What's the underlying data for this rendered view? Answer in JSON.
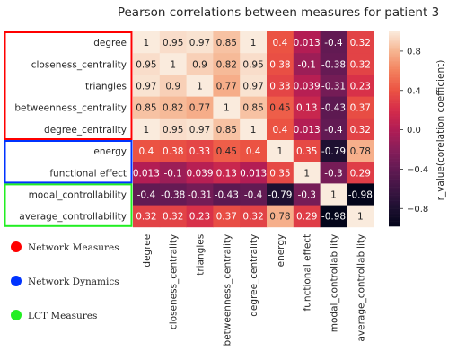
{
  "chart_data": {
    "type": "heatmap",
    "title": "Pearson correlations between measures for patient 3",
    "labels": [
      "degree",
      "closeness_centrality",
      "triangles",
      "betweenness_centrality",
      "degree_centrality",
      "energy",
      "functional effect",
      "modal_controllability",
      "average_controllability"
    ],
    "matrix": [
      [
        1,
        0.95,
        0.97,
        0.85,
        1,
        0.4,
        0.013,
        -0.4,
        0.32
      ],
      [
        0.95,
        1,
        0.9,
        0.82,
        0.95,
        0.38,
        -0.1,
        -0.38,
        0.32
      ],
      [
        0.97,
        0.9,
        1,
        0.77,
        0.97,
        0.33,
        0.039,
        -0.31,
        0.23
      ],
      [
        0.85,
        0.82,
        0.77,
        1,
        0.85,
        0.45,
        0.13,
        -0.43,
        0.37
      ],
      [
        1,
        0.95,
        0.97,
        0.85,
        1,
        0.4,
        0.013,
        -0.4,
        0.32
      ],
      [
        0.4,
        0.38,
        0.33,
        0.45,
        0.4,
        1,
        0.35,
        -0.79,
        0.78
      ],
      [
        0.013,
        -0.1,
        0.039,
        0.13,
        0.013,
        0.35,
        1,
        -0.3,
        0.29
      ],
      [
        -0.4,
        -0.38,
        -0.31,
        -0.43,
        -0.4,
        -0.79,
        -0.3,
        1,
        -0.98
      ],
      [
        0.32,
        0.32,
        0.23,
        0.37,
        0.32,
        0.78,
        0.29,
        -0.98,
        1
      ]
    ],
    "annotations": [
      [
        "1",
        "0.95",
        "0.97",
        "0.85",
        "1",
        "0.4",
        "0.013",
        "-0.4",
        "0.32"
      ],
      [
        "0.95",
        "1",
        "0.9",
        "0.82",
        "0.95",
        "0.38",
        "-0.1",
        "-0.38",
        "0.32"
      ],
      [
        "0.97",
        "0.9",
        "1",
        "0.77",
        "0.97",
        "0.33",
        "0.039",
        "-0.31",
        "0.23"
      ],
      [
        "0.85",
        "0.82",
        "0.77",
        "1",
        "0.85",
        "0.45",
        "0.13",
        "-0.43",
        "0.37"
      ],
      [
        "1",
        "0.95",
        "0.97",
        "0.85",
        "1",
        "0.4",
        "0.013",
        "-0.4",
        "0.32"
      ],
      [
        "0.4",
        "0.38",
        "0.33",
        "0.45",
        "0.4",
        "1",
        "0.35",
        "-0.79",
        "0.78"
      ],
      [
        "0.013",
        "-0.1",
        "0.039",
        "0.13",
        "0.013",
        "0.35",
        "1",
        "-0.3",
        "0.29"
      ],
      [
        "-0.4",
        "-0.38",
        "-0.31",
        "-0.43",
        "-0.4",
        "-0.79",
        "-0.3",
        "1",
        "-0.98"
      ],
      [
        "0.32",
        "0.32",
        "0.23",
        "0.37",
        "0.32",
        "0.78",
        "0.29",
        "-0.98",
        "1"
      ]
    ],
    "colorbar": {
      "label": "r_value(corelation coefficient)",
      "range": [
        -0.98,
        1
      ],
      "ticks": [
        0.8,
        0.4,
        0.0,
        -0.4,
        -0.8
      ],
      "tick_labels": [
        "0.8",
        "0.4",
        "0.0",
        "−0.4",
        "−0.8"
      ],
      "colormap": "rocket"
    },
    "groups": [
      {
        "name": "Network Measures",
        "color": "#ff0000",
        "rows": [
          0,
          4
        ]
      },
      {
        "name": "Network Dynamics",
        "color": "#0033ff",
        "rows": [
          5,
          6
        ]
      },
      {
        "name": "LCT Measures",
        "color": "#22ee22",
        "rows": [
          7,
          8
        ]
      }
    ],
    "legend_position": "bottom-left"
  }
}
